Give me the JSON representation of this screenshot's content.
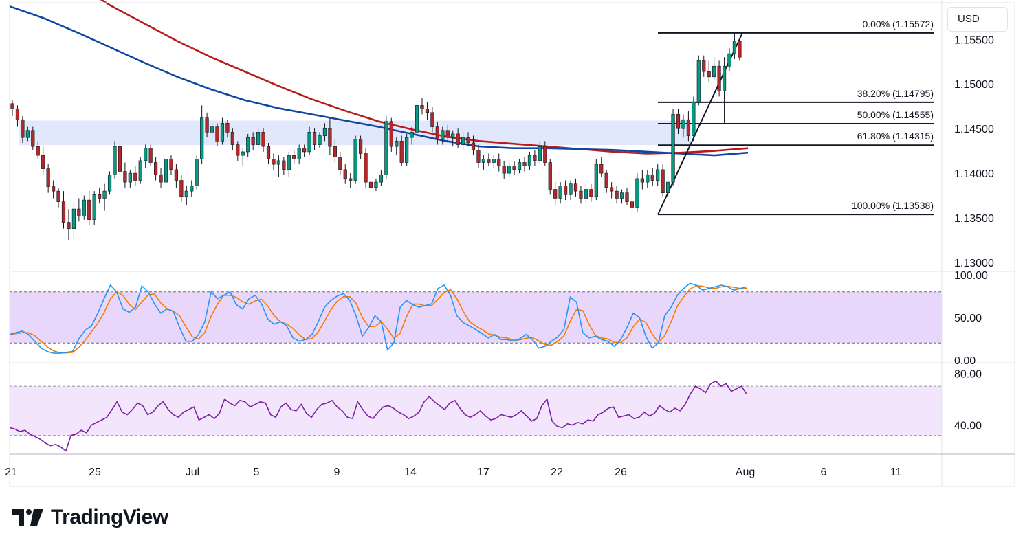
{
  "chart_data": {
    "type": "candlestick",
    "currency": "USD",
    "current_price": "1.15303",
    "price_axis": {
      "ticks": [
        "1.15500",
        "1.15000",
        "1.14500",
        "1.14000",
        "1.13500",
        "1.13000"
      ],
      "ylim": [
        1.129,
        1.1591
      ]
    },
    "date_axis": {
      "ticks": [
        "21",
        "25",
        "Jul",
        "5",
        "9",
        "14",
        "17",
        "22",
        "26",
        "Aug",
        "6",
        "11"
      ]
    },
    "fibonacci": [
      {
        "label": "0.00% (1.15572)",
        "value": 1.15572
      },
      {
        "label": "38.20% (1.14795)",
        "value": 1.14795
      },
      {
        "label": "50.00% (1.14555)",
        "value": 1.14555
      },
      {
        "label": "61.80% (1.14315)",
        "value": 1.14315
      },
      {
        "label": "100.00% (1.13538)",
        "value": 1.13538
      }
    ],
    "zone": {
      "from": 1.14315,
      "to": 1.1459
    },
    "candles": [
      [
        1.1478,
        1.1482,
        1.1464,
        1.1472
      ],
      [
        1.1472,
        1.1476,
        1.1452,
        1.146
      ],
      [
        1.146,
        1.1464,
        1.1434,
        1.144
      ],
      [
        1.144,
        1.1452,
        1.1436,
        1.1448
      ],
      [
        1.1448,
        1.1452,
        1.1426,
        1.143
      ],
      [
        1.143,
        1.1436,
        1.1416,
        1.142
      ],
      [
        1.142,
        1.143,
        1.1398,
        1.1405
      ],
      [
        1.1405,
        1.141,
        1.1378,
        1.1385
      ],
      [
        1.1385,
        1.1392,
        1.1372,
        1.138
      ],
      [
        1.138,
        1.1384,
        1.1362,
        1.1368
      ],
      [
        1.1368,
        1.138,
        1.1338,
        1.1345
      ],
      [
        1.1345,
        1.136,
        1.1325,
        1.1338
      ],
      [
        1.1338,
        1.1368,
        1.1328,
        1.136
      ],
      [
        1.136,
        1.1372,
        1.1346,
        1.1352
      ],
      [
        1.1352,
        1.1375,
        1.1348,
        1.137
      ],
      [
        1.137,
        1.138,
        1.1342,
        1.1348
      ],
      [
        1.1348,
        1.138,
        1.1342,
        1.1376
      ],
      [
        1.1376,
        1.1384,
        1.1366,
        1.1372
      ],
      [
        1.1372,
        1.1388,
        1.1358,
        1.138
      ],
      [
        1.138,
        1.1402,
        1.1376,
        1.1398
      ],
      [
        1.1398,
        1.1436,
        1.1394,
        1.143
      ],
      [
        1.143,
        1.1434,
        1.1398,
        1.1402
      ],
      [
        1.1402,
        1.1412,
        1.1384,
        1.139
      ],
      [
        1.139,
        1.1404,
        1.1384,
        1.14
      ],
      [
        1.14,
        1.1408,
        1.1386,
        1.1392
      ],
      [
        1.1392,
        1.1418,
        1.1388,
        1.1414
      ],
      [
        1.1414,
        1.1432,
        1.1406,
        1.1428
      ],
      [
        1.1428,
        1.1432,
        1.1408,
        1.1412
      ],
      [
        1.1412,
        1.1418,
        1.1392,
        1.1398
      ],
      [
        1.1398,
        1.1406,
        1.1384,
        1.139
      ],
      [
        1.139,
        1.142,
        1.1386,
        1.1416
      ],
      [
        1.1416,
        1.142,
        1.1398,
        1.1404
      ],
      [
        1.1404,
        1.141,
        1.1384,
        1.1392
      ],
      [
        1.1392,
        1.1398,
        1.1368,
        1.1374
      ],
      [
        1.1374,
        1.1386,
        1.1364,
        1.138
      ],
      [
        1.138,
        1.1392,
        1.1374,
        1.1386
      ],
      [
        1.1386,
        1.142,
        1.1382,
        1.1416
      ],
      [
        1.1416,
        1.1476,
        1.141,
        1.1462
      ],
      [
        1.1462,
        1.1468,
        1.144,
        1.1446
      ],
      [
        1.1446,
        1.146,
        1.1438,
        1.1452
      ],
      [
        1.1452,
        1.1456,
        1.143,
        1.1436
      ],
      [
        1.1436,
        1.1462,
        1.1432,
        1.1456
      ],
      [
        1.1456,
        1.146,
        1.144,
        1.1446
      ],
      [
        1.1446,
        1.145,
        1.1426,
        1.1432
      ],
      [
        1.1432,
        1.1436,
        1.1414,
        1.142
      ],
      [
        1.142,
        1.1428,
        1.1408,
        1.1424
      ],
      [
        1.1424,
        1.1444,
        1.1418,
        1.144
      ],
      [
        1.144,
        1.1446,
        1.1426,
        1.1432
      ],
      [
        1.1432,
        1.145,
        1.1428,
        1.1446
      ],
      [
        1.1446,
        1.145,
        1.1424,
        1.143
      ],
      [
        1.143,
        1.1434,
        1.141,
        1.1416
      ],
      [
        1.1416,
        1.1422,
        1.1404,
        1.141
      ],
      [
        1.141,
        1.142,
        1.1396,
        1.1414
      ],
      [
        1.1414,
        1.1418,
        1.1398,
        1.1404
      ],
      [
        1.1404,
        1.1424,
        1.1396,
        1.142
      ],
      [
        1.142,
        1.1426,
        1.141,
        1.1416
      ],
      [
        1.1416,
        1.1432,
        1.141,
        1.1428
      ],
      [
        1.1428,
        1.1432,
        1.1418,
        1.1424
      ],
      [
        1.1424,
        1.1452,
        1.142,
        1.1446
      ],
      [
        1.1446,
        1.145,
        1.1426,
        1.1432
      ],
      [
        1.1432,
        1.1446,
        1.1428,
        1.1442
      ],
      [
        1.1442,
        1.1456,
        1.1436,
        1.145
      ],
      [
        1.145,
        1.1462,
        1.142,
        1.143
      ],
      [
        1.143,
        1.1438,
        1.1412,
        1.1418
      ],
      [
        1.1418,
        1.1424,
        1.1398,
        1.1404
      ],
      [
        1.1404,
        1.141,
        1.1388,
        1.1394
      ],
      [
        1.1394,
        1.14,
        1.1384,
        1.1392
      ],
      [
        1.1392,
        1.1442,
        1.1388,
        1.1438
      ],
      [
        1.1438,
        1.1442,
        1.1416,
        1.1422
      ],
      [
        1.1422,
        1.1428,
        1.1384,
        1.139
      ],
      [
        1.139,
        1.1396,
        1.1376,
        1.1384
      ],
      [
        1.1384,
        1.1394,
        1.138,
        1.139
      ],
      [
        1.139,
        1.1404,
        1.1386,
        1.1398
      ],
      [
        1.1398,
        1.1464,
        1.1394,
        1.1458
      ],
      [
        1.1458,
        1.1462,
        1.1424,
        1.143
      ],
      [
        1.143,
        1.144,
        1.142,
        1.1436
      ],
      [
        1.1436,
        1.1442,
        1.1408,
        1.1412
      ],
      [
        1.1412,
        1.1444,
        1.1408,
        1.144
      ],
      [
        1.144,
        1.1452,
        1.1432,
        1.1446
      ],
      [
        1.1446,
        1.1482,
        1.144,
        1.1476
      ],
      [
        1.1476,
        1.1484,
        1.1466,
        1.1472
      ],
      [
        1.1472,
        1.148,
        1.146,
        1.1468
      ],
      [
        1.1468,
        1.1474,
        1.1446,
        1.1452
      ],
      [
        1.1452,
        1.1458,
        1.1432,
        1.1438
      ],
      [
        1.1438,
        1.1452,
        1.1432,
        1.1448
      ],
      [
        1.1448,
        1.1454,
        1.1434,
        1.144
      ],
      [
        1.144,
        1.1448,
        1.143,
        1.1444
      ],
      [
        1.1444,
        1.145,
        1.1428,
        1.1432
      ],
      [
        1.1432,
        1.1446,
        1.1426,
        1.144
      ],
      [
        1.144,
        1.1446,
        1.143,
        1.1434
      ],
      [
        1.1434,
        1.1442,
        1.142,
        1.1426
      ],
      [
        1.1426,
        1.1432,
        1.1406,
        1.1412
      ],
      [
        1.1412,
        1.142,
        1.1404,
        1.1416
      ],
      [
        1.1416,
        1.1422,
        1.1408,
        1.1412
      ],
      [
        1.1412,
        1.142,
        1.1406,
        1.1416
      ],
      [
        1.1416,
        1.1422,
        1.1402,
        1.1408
      ],
      [
        1.1408,
        1.1414,
        1.1394,
        1.14
      ],
      [
        1.14,
        1.1412,
        1.1396,
        1.1408
      ],
      [
        1.1408,
        1.1414,
        1.1398,
        1.1404
      ],
      [
        1.1404,
        1.1416,
        1.14,
        1.1412
      ],
      [
        1.1412,
        1.1418,
        1.1402,
        1.1408
      ],
      [
        1.1408,
        1.1424,
        1.1404,
        1.142
      ],
      [
        1.142,
        1.1426,
        1.1408,
        1.1414
      ],
      [
        1.1414,
        1.1436,
        1.141,
        1.143
      ],
      [
        1.143,
        1.1436,
        1.1408,
        1.1412
      ],
      [
        1.1412,
        1.1416,
        1.1376,
        1.1382
      ],
      [
        1.1382,
        1.139,
        1.1364,
        1.1372
      ],
      [
        1.1372,
        1.139,
        1.1366,
        1.1386
      ],
      [
        1.1386,
        1.1392,
        1.137,
        1.1376
      ],
      [
        1.1376,
        1.1392,
        1.137,
        1.1388
      ],
      [
        1.1388,
        1.1394,
        1.1374,
        1.138
      ],
      [
        1.138,
        1.1386,
        1.1366,
        1.1372
      ],
      [
        1.1372,
        1.1388,
        1.1366,
        1.1382
      ],
      [
        1.1382,
        1.1388,
        1.1368,
        1.1374
      ],
      [
        1.1374,
        1.1416,
        1.137,
        1.141
      ],
      [
        1.141,
        1.1418,
        1.1396,
        1.14
      ],
      [
        1.14,
        1.1404,
        1.1378,
        1.1384
      ],
      [
        1.1384,
        1.139,
        1.1372,
        1.138
      ],
      [
        1.138,
        1.1386,
        1.1366,
        1.1372
      ],
      [
        1.1372,
        1.1382,
        1.1366,
        1.1378
      ],
      [
        1.1378,
        1.1384,
        1.1364,
        1.1368
      ],
      [
        1.1368,
        1.1374,
        1.1354,
        1.1362
      ],
      [
        1.1362,
        1.14,
        1.1356,
        1.1394
      ],
      [
        1.1394,
        1.1404,
        1.1382,
        1.139
      ],
      [
        1.139,
        1.1404,
        1.1384,
        1.1398
      ],
      [
        1.1398,
        1.1406,
        1.1386,
        1.1392
      ],
      [
        1.1392,
        1.141,
        1.1386,
        1.1404
      ],
      [
        1.1404,
        1.141,
        1.1374,
        1.1378
      ],
      [
        1.1378,
        1.1396,
        1.1372,
        1.139
      ],
      [
        1.139,
        1.1472,
        1.1386,
        1.1466
      ],
      [
        1.1466,
        1.1472,
        1.1444,
        1.145
      ],
      [
        1.145,
        1.1466,
        1.144,
        1.146
      ],
      [
        1.146,
        1.147,
        1.1436,
        1.1442
      ],
      [
        1.1442,
        1.1486,
        1.1436,
        1.148
      ],
      [
        1.148,
        1.1532,
        1.1476,
        1.1526
      ],
      [
        1.1526,
        1.1532,
        1.1508,
        1.1514
      ],
      [
        1.1514,
        1.1526,
        1.1502,
        1.1508
      ],
      [
        1.1508,
        1.153,
        1.1504,
        1.152
      ],
      [
        1.152,
        1.1526,
        1.1486,
        1.1492
      ],
      [
        1.1492,
        1.153,
        1.1456,
        1.152
      ],
      [
        1.152,
        1.154,
        1.1514,
        1.1534
      ],
      [
        1.1534,
        1.1557,
        1.1528,
        1.1548
      ],
      [
        1.1548,
        1.1552,
        1.1526,
        1.153
      ]
    ],
    "ema_slow": [
      1.166,
      1.164,
      1.1612,
      1.1588,
      1.1568,
      1.1548,
      1.153,
      1.1514,
      1.1498,
      1.1483,
      1.147,
      1.1458,
      1.1449,
      1.1441,
      1.1436,
      1.1433,
      1.143,
      1.1427,
      1.1424,
      1.1422,
      1.1423,
      1.1425,
      1.1428
    ],
    "ema_fast": [
      1.1587,
      1.1574,
      1.1558,
      1.1541,
      1.1524,
      1.1508,
      1.1494,
      1.1482,
      1.1473,
      1.1466,
      1.1459,
      1.1452,
      1.1444,
      1.1436,
      1.143,
      1.1428,
      1.1428,
      1.1427,
      1.1426,
      1.1424,
      1.1422,
      1.142,
      1.1423
    ],
    "stoch": {
      "ylim": [
        0,
        100
      ],
      "ticks": [
        "100.00",
        "50.00",
        "0.00"
      ],
      "band": [
        20,
        80
      ],
      "k": [
        30,
        32,
        34,
        30,
        22,
        14,
        10,
        8,
        8,
        9,
        10,
        25,
        35,
        40,
        55,
        72,
        88,
        80,
        60,
        56,
        62,
        87,
        80,
        66,
        55,
        60,
        57,
        38,
        22,
        22,
        30,
        45,
        80,
        72,
        76,
        80,
        65,
        60,
        72,
        76,
        66,
        48,
        42,
        45,
        40,
        26,
        22,
        24,
        30,
        45,
        62,
        70,
        75,
        78,
        70,
        52,
        28,
        38,
        52,
        45,
        12,
        20,
        62,
        70,
        65,
        62,
        64,
        66,
        84,
        88,
        76,
        52,
        44,
        40,
        36,
        31,
        26,
        30,
        24,
        24,
        22,
        25,
        30,
        24,
        14,
        16,
        22,
        27,
        36,
        74,
        68,
        32,
        26,
        28,
        24,
        22,
        16,
        24,
        38,
        55,
        50,
        28,
        14,
        20,
        52,
        62,
        76,
        84,
        90,
        88,
        82,
        84,
        86,
        88,
        86,
        82,
        84,
        86
      ]
    },
    "rsi": {
      "ylim": [
        18,
        86
      ],
      "ticks": [
        "80.00",
        "40.00"
      ],
      "band": [
        32,
        70
      ],
      "values": [
        38,
        37,
        35,
        36,
        33,
        31,
        29,
        26,
        24,
        25,
        23,
        20,
        32,
        33,
        36,
        34,
        40,
        42,
        44,
        46,
        52,
        58,
        50,
        48,
        52,
        57,
        55,
        48,
        50,
        55,
        58,
        52,
        48,
        46,
        50,
        52,
        54,
        44,
        46,
        48,
        45,
        49,
        60,
        57,
        55,
        59,
        58,
        54,
        56,
        58,
        57,
        48,
        46,
        54,
        57,
        52,
        51,
        56,
        49,
        46,
        52,
        56,
        57,
        59,
        54,
        51,
        46,
        45,
        58,
        52,
        47,
        45,
        50,
        54,
        55,
        53,
        50,
        48,
        45,
        47,
        50,
        58,
        62,
        58,
        55,
        52,
        57,
        59,
        53,
        48,
        46,
        48,
        51,
        47,
        44,
        45,
        48,
        47,
        46,
        48,
        51,
        47,
        43,
        45,
        55,
        60,
        43,
        39,
        38,
        41,
        40,
        42,
        41,
        44,
        43,
        48,
        50,
        53,
        54,
        46,
        47,
        48,
        45,
        46,
        50,
        47,
        49,
        55,
        52,
        50,
        53,
        51,
        56,
        64,
        70,
        68,
        65,
        72,
        74,
        70,
        72,
        66,
        68,
        70,
        64
      ]
    }
  }
}
